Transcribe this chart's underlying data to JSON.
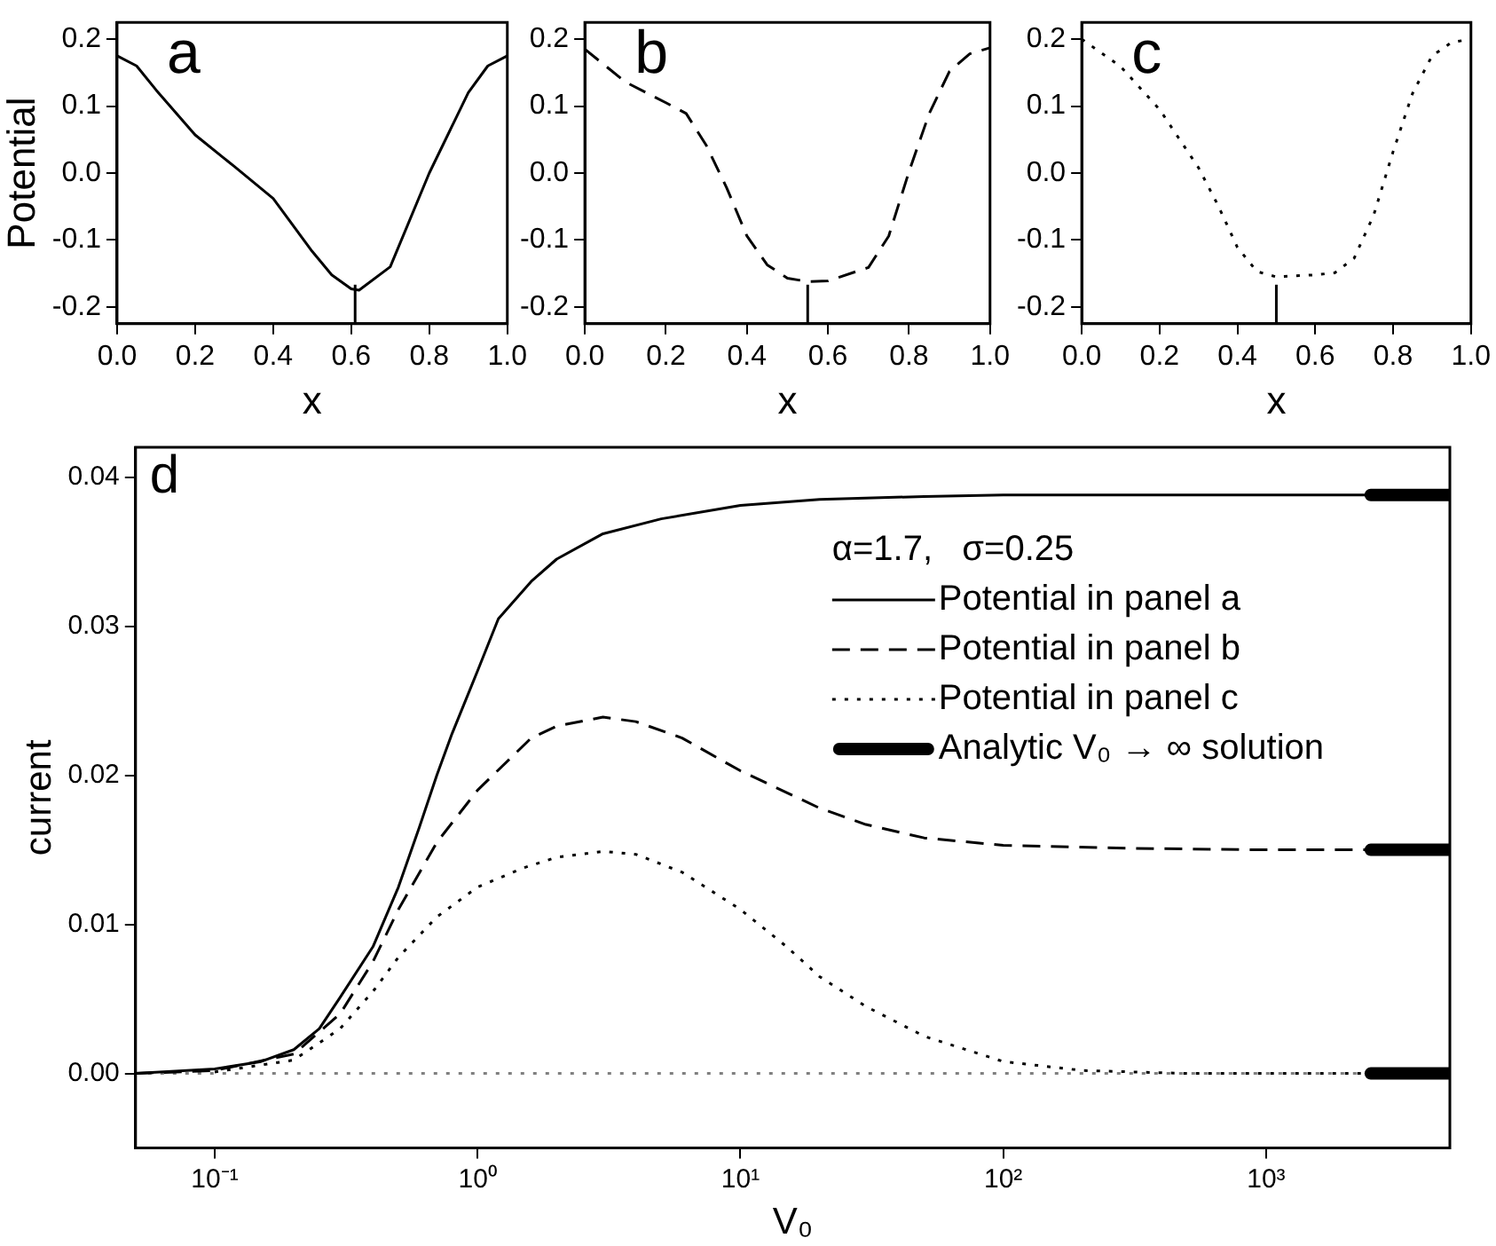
{
  "chart_data": [
    {
      "type": "line",
      "title": "a",
      "xlabel": "x",
      "ylabel": "Potential",
      "color": "#000000",
      "line_style": "solid",
      "x": [
        0,
        0.05,
        0.1,
        0.2,
        0.3,
        0.4,
        0.5,
        0.55,
        0.6,
        0.62,
        0.7,
        0.8,
        0.9,
        0.95,
        1.0
      ],
      "values": [
        0.175,
        0.16,
        0.124,
        0.057,
        0.01,
        -0.038,
        -0.117,
        -0.152,
        -0.173,
        -0.175,
        -0.14,
        0.0,
        0.12,
        0.16,
        0.175
      ],
      "xlim": [
        0,
        1
      ],
      "xticks": [
        {
          "value": 0,
          "label": "0.0"
        },
        0.2,
        0.4,
        0.6,
        0.8,
        {
          "value": 1,
          "label": "1.0"
        }
      ],
      "ylim": [
        -0.225,
        0.225
      ],
      "yticks": [
        -0.2,
        -0.1,
        {
          "value": 0,
          "label": "0.0"
        },
        0.1,
        0.2
      ],
      "ref_lines": [
        {
          "axis": "x",
          "value": 0.61,
          "color": "#000000"
        }
      ],
      "grid": false,
      "legend": false
    },
    {
      "type": "line",
      "title": "b",
      "xlabel": "x",
      "color": "#000000",
      "line_style": "dashed",
      "x": [
        0,
        0.1,
        0.2,
        0.25,
        0.3,
        0.35,
        0.4,
        0.45,
        0.5,
        0.55,
        0.6,
        0.7,
        0.75,
        0.8,
        0.85,
        0.9,
        0.95,
        1.0
      ],
      "values": [
        0.185,
        0.136,
        0.105,
        0.089,
        0.041,
        -0.022,
        -0.094,
        -0.137,
        -0.157,
        -0.162,
        -0.161,
        -0.141,
        -0.094,
        0.002,
        0.089,
        0.152,
        0.178,
        0.187
      ],
      "xlim": [
        0,
        1
      ],
      "xticks": [
        {
          "value": 0,
          "label": "0.0"
        },
        0.2,
        0.4,
        0.6,
        0.8,
        {
          "value": 1,
          "label": "1.0"
        }
      ],
      "ylim": [
        -0.225,
        0.225
      ],
      "yticks": [
        -0.2,
        -0.1,
        {
          "value": 0,
          "label": "0.0"
        },
        0.1,
        0.2
      ],
      "ref_lines": [
        {
          "axis": "x",
          "value": 0.55,
          "color": "#000000"
        }
      ],
      "grid": false,
      "legend": false
    },
    {
      "type": "line",
      "title": "c",
      "xlabel": "x",
      "color": "#000000",
      "line_style": "dotted",
      "x": [
        0,
        0.1,
        0.2,
        0.3,
        0.35,
        0.4,
        0.45,
        0.5,
        0.6,
        0.65,
        0.7,
        0.75,
        0.8,
        0.85,
        0.9,
        0.95,
        1.0
      ],
      "values": [
        0.2,
        0.159,
        0.095,
        0.008,
        -0.048,
        -0.111,
        -0.147,
        -0.155,
        -0.152,
        -0.149,
        -0.127,
        -0.063,
        0.032,
        0.119,
        0.175,
        0.195,
        0.2
      ],
      "xlim": [
        0,
        1
      ],
      "xticks": [
        {
          "value": 0,
          "label": "0.0"
        },
        0.2,
        0.4,
        0.6,
        0.8,
        {
          "value": 1,
          "label": "1.0"
        }
      ],
      "ylim": [
        -0.225,
        0.225
      ],
      "yticks": [
        -0.2,
        -0.1,
        {
          "value": 0,
          "label": "0.0"
        },
        0.1,
        0.2
      ],
      "ref_lines": [
        {
          "axis": "x",
          "value": 0.5,
          "color": "#000000"
        }
      ],
      "grid": false,
      "legend": false
    },
    {
      "type": "line",
      "title": "d",
      "xlabel": "V₀",
      "ylabel": "current",
      "legend_title": "α=1.7,   σ=0.25",
      "legend": "top right",
      "log": "x",
      "grid": false,
      "xlim": [
        0.05,
        5000
      ],
      "xticks": [
        {
          "value": 0.1,
          "label": "10⁻¹"
        },
        {
          "value": 1,
          "label": "10⁰"
        },
        {
          "value": 10,
          "label": "10¹"
        },
        {
          "value": 100,
          "label": "10²"
        },
        {
          "value": 1000,
          "label": "10³"
        }
      ],
      "ylim": [
        -0.005,
        0.042
      ],
      "yticks": [
        {
          "value": 0,
          "label": "0.00"
        },
        {
          "value": 0.01,
          "label": "0.01"
        },
        {
          "value": 0.02,
          "label": "0.02"
        },
        {
          "value": 0.03,
          "label": "0.03"
        },
        {
          "value": 0.04,
          "label": "0.04"
        }
      ],
      "ref_lines": [
        {
          "axis": "y",
          "value": 0,
          "color": "#808080",
          "line_style": "dotted"
        }
      ],
      "series": [
        {
          "name": "Potential in panel a",
          "color": "#000000",
          "line_style": "solid",
          "x": [
            0.05,
            0.1,
            0.15,
            0.2,
            0.25,
            0.3,
            0.4,
            0.5,
            0.6,
            0.7,
            0.8,
            1.0,
            1.2,
            1.6,
            2,
            3,
            5,
            10,
            20,
            50,
            100,
            1000,
            2500
          ],
          "values": [
            0,
            0.0003,
            0.0008,
            0.0016,
            0.003,
            0.0051,
            0.0085,
            0.0125,
            0.0165,
            0.02,
            0.0228,
            0.027,
            0.0305,
            0.033,
            0.0345,
            0.0362,
            0.0372,
            0.0381,
            0.0385,
            0.0387,
            0.0388,
            0.0388,
            0.0388
          ]
        },
        {
          "name": "Potential in panel b",
          "color": "#000000",
          "line_style": "dashed",
          "x": [
            0.05,
            0.1,
            0.2,
            0.3,
            0.4,
            0.5,
            0.7,
            1,
            1.6,
            2,
            3,
            4,
            6,
            10,
            20,
            30,
            50,
            100,
            300,
            1000,
            2500
          ],
          "values": [
            0,
            0.0002,
            0.0013,
            0.004,
            0.0075,
            0.011,
            0.0155,
            0.019,
            0.0225,
            0.0233,
            0.0239,
            0.0236,
            0.0225,
            0.0203,
            0.0178,
            0.0167,
            0.0158,
            0.0153,
            0.0151,
            0.015,
            0.015
          ]
        },
        {
          "name": "Potential in panel c",
          "color": "#000000",
          "line_style": "dotted",
          "x": [
            0.1,
            0.2,
            0.3,
            0.4,
            0.5,
            0.7,
            1,
            1.5,
            2,
            3,
            4,
            6,
            10,
            15,
            20,
            30,
            50,
            100,
            200,
            500,
            2500
          ],
          "values": [
            0.0001,
            0.0009,
            0.003,
            0.0055,
            0.0078,
            0.0105,
            0.0125,
            0.0138,
            0.0145,
            0.0149,
            0.0147,
            0.0135,
            0.011,
            0.0085,
            0.0065,
            0.0045,
            0.0025,
            0.0008,
            0.0002,
            0,
            0
          ]
        },
        {
          "name": "Analytic V₀ → ∞ solution",
          "color": "#000000",
          "line_style": "solid",
          "x": [
            2500,
            5000
          ],
          "values": [
            0.0388,
            0.0388
          ]
        },
        {
          "color": "#000000",
          "line_style": "solid",
          "x": [
            2500,
            5000
          ],
          "values": [
            0.015,
            0.015
          ]
        },
        {
          "color": "#000000",
          "line_style": "solid",
          "x": [
            2500,
            5000
          ],
          "values": [
            0,
            0
          ]
        }
      ]
    }
  ]
}
